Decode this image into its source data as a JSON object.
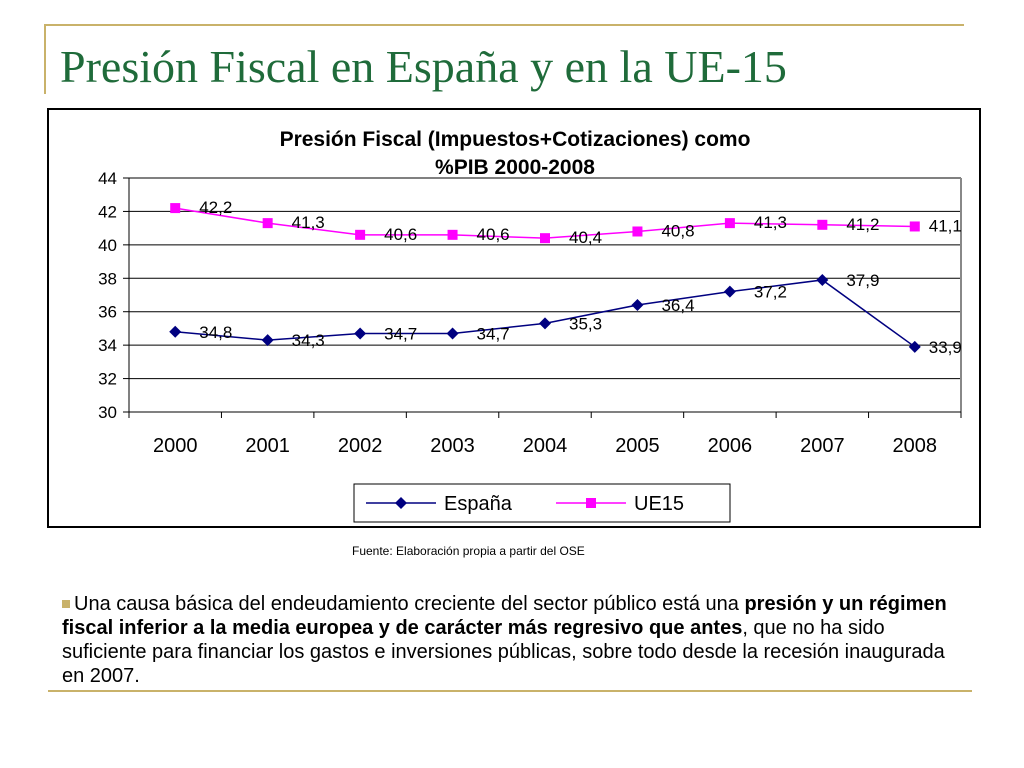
{
  "slide": {
    "title": "Presión Fiscal en España y en la UE-15",
    "source": "Fuente: Elaboración propia a partir del OSE",
    "text": {
      "part1": "Una causa básica del endeudamiento creciente del sector público está una ",
      "bold": "presión y un régimen fiscal inferior a la media europea y de carácter más regresivo que antes",
      "part2": ", que no ha sido suficiente para financiar los gastos e inversiones públicas, sobre todo desde la recesión inaugurada en 2007."
    }
  },
  "chart_data": {
    "type": "line",
    "title": "Presión Fiscal (Impuestos+Cotizaciones) como %PIB 2000-2008",
    "title_lines": [
      "Presión Fiscal (Impuestos+Cotizaciones) como",
      "%PIB 2000-2008"
    ],
    "categories": [
      "2000",
      "2001",
      "2002",
      "2003",
      "2004",
      "2005",
      "2006",
      "2007",
      "2008"
    ],
    "ylim": [
      30,
      44
    ],
    "yticks": [
      30,
      32,
      34,
      36,
      38,
      40,
      42,
      44
    ],
    "grid": true,
    "legend_position": "bottom",
    "series": [
      {
        "name": "España",
        "color": "#000080",
        "marker": "diamond",
        "values": [
          34.8,
          34.3,
          34.7,
          34.7,
          35.3,
          36.4,
          37.2,
          37.9,
          33.9
        ],
        "labels": [
          "34,8",
          "34,3",
          "34,7",
          "34,7",
          "35,3",
          "36,4",
          "37,2",
          "37,9",
          "33,9"
        ]
      },
      {
        "name": "UE15",
        "color": "#ff00ff",
        "marker": "square",
        "values": [
          42.2,
          41.3,
          40.6,
          40.6,
          40.4,
          40.8,
          41.3,
          41.2,
          41.1
        ],
        "labels": [
          "42,2",
          "41,3",
          "40,6",
          "40,6",
          "40,4",
          "40,8",
          "41,3",
          "41,2",
          "41,1"
        ]
      }
    ]
  }
}
